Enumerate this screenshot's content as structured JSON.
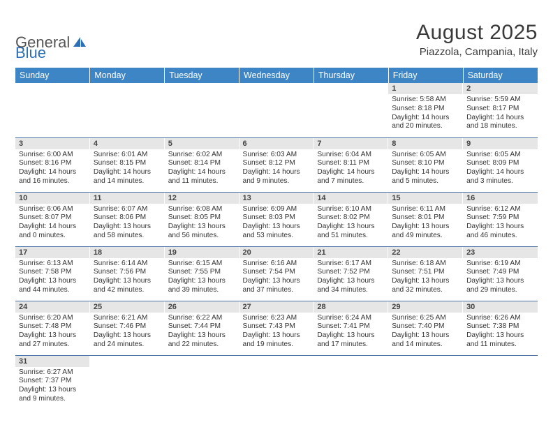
{
  "logo": {
    "text1": "General",
    "text2": "Blue"
  },
  "title": {
    "month": "August 2025",
    "location": "Piazzola, Campania, Italy"
  },
  "headerColor": "#3e85c6",
  "dayHeaders": [
    "Sunday",
    "Monday",
    "Tuesday",
    "Wednesday",
    "Thursday",
    "Friday",
    "Saturday"
  ],
  "weeks": [
    [
      null,
      null,
      null,
      null,
      null,
      {
        "n": "1",
        "sr": "5:58 AM",
        "ss": "8:18 PM",
        "dh": "14",
        "dm": "20"
      },
      {
        "n": "2",
        "sr": "5:59 AM",
        "ss": "8:17 PM",
        "dh": "14",
        "dm": "18"
      }
    ],
    [
      {
        "n": "3",
        "sr": "6:00 AM",
        "ss": "8:16 PM",
        "dh": "14",
        "dm": "16"
      },
      {
        "n": "4",
        "sr": "6:01 AM",
        "ss": "8:15 PM",
        "dh": "14",
        "dm": "14"
      },
      {
        "n": "5",
        "sr": "6:02 AM",
        "ss": "8:14 PM",
        "dh": "14",
        "dm": "11"
      },
      {
        "n": "6",
        "sr": "6:03 AM",
        "ss": "8:12 PM",
        "dh": "14",
        "dm": "9"
      },
      {
        "n": "7",
        "sr": "6:04 AM",
        "ss": "8:11 PM",
        "dh": "14",
        "dm": "7"
      },
      {
        "n": "8",
        "sr": "6:05 AM",
        "ss": "8:10 PM",
        "dh": "14",
        "dm": "5"
      },
      {
        "n": "9",
        "sr": "6:05 AM",
        "ss": "8:09 PM",
        "dh": "14",
        "dm": "3"
      }
    ],
    [
      {
        "n": "10",
        "sr": "6:06 AM",
        "ss": "8:07 PM",
        "dh": "14",
        "dm": "0"
      },
      {
        "n": "11",
        "sr": "6:07 AM",
        "ss": "8:06 PM",
        "dh": "13",
        "dm": "58"
      },
      {
        "n": "12",
        "sr": "6:08 AM",
        "ss": "8:05 PM",
        "dh": "13",
        "dm": "56"
      },
      {
        "n": "13",
        "sr": "6:09 AM",
        "ss": "8:03 PM",
        "dh": "13",
        "dm": "53"
      },
      {
        "n": "14",
        "sr": "6:10 AM",
        "ss": "8:02 PM",
        "dh": "13",
        "dm": "51"
      },
      {
        "n": "15",
        "sr": "6:11 AM",
        "ss": "8:01 PM",
        "dh": "13",
        "dm": "49"
      },
      {
        "n": "16",
        "sr": "6:12 AM",
        "ss": "7:59 PM",
        "dh": "13",
        "dm": "46"
      }
    ],
    [
      {
        "n": "17",
        "sr": "6:13 AM",
        "ss": "7:58 PM",
        "dh": "13",
        "dm": "44"
      },
      {
        "n": "18",
        "sr": "6:14 AM",
        "ss": "7:56 PM",
        "dh": "13",
        "dm": "42"
      },
      {
        "n": "19",
        "sr": "6:15 AM",
        "ss": "7:55 PM",
        "dh": "13",
        "dm": "39"
      },
      {
        "n": "20",
        "sr": "6:16 AM",
        "ss": "7:54 PM",
        "dh": "13",
        "dm": "37"
      },
      {
        "n": "21",
        "sr": "6:17 AM",
        "ss": "7:52 PM",
        "dh": "13",
        "dm": "34"
      },
      {
        "n": "22",
        "sr": "6:18 AM",
        "ss": "7:51 PM",
        "dh": "13",
        "dm": "32"
      },
      {
        "n": "23",
        "sr": "6:19 AM",
        "ss": "7:49 PM",
        "dh": "13",
        "dm": "29"
      }
    ],
    [
      {
        "n": "24",
        "sr": "6:20 AM",
        "ss": "7:48 PM",
        "dh": "13",
        "dm": "27"
      },
      {
        "n": "25",
        "sr": "6:21 AM",
        "ss": "7:46 PM",
        "dh": "13",
        "dm": "24"
      },
      {
        "n": "26",
        "sr": "6:22 AM",
        "ss": "7:44 PM",
        "dh": "13",
        "dm": "22"
      },
      {
        "n": "27",
        "sr": "6:23 AM",
        "ss": "7:43 PM",
        "dh": "13",
        "dm": "19"
      },
      {
        "n": "28",
        "sr": "6:24 AM",
        "ss": "7:41 PM",
        "dh": "13",
        "dm": "17"
      },
      {
        "n": "29",
        "sr": "6:25 AM",
        "ss": "7:40 PM",
        "dh": "13",
        "dm": "14"
      },
      {
        "n": "30",
        "sr": "6:26 AM",
        "ss": "7:38 PM",
        "dh": "13",
        "dm": "11"
      }
    ],
    [
      {
        "n": "31",
        "sr": "6:27 AM",
        "ss": "7:37 PM",
        "dh": "13",
        "dm": "9"
      },
      null,
      null,
      null,
      null,
      null,
      null
    ]
  ],
  "labels": {
    "sunrise": "Sunrise:",
    "sunset": "Sunset:",
    "daylight": "Daylight:",
    "hours": "hours",
    "and": "and",
    "minutes": "minutes."
  }
}
